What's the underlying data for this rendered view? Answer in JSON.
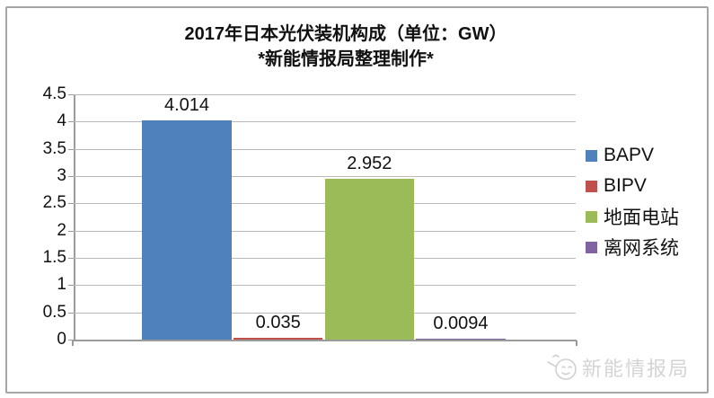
{
  "title": {
    "line1": "2017年日本光伏装机构成（单位：GW）",
    "line2": "*新能情报局整理制作*"
  },
  "chart_data": {
    "type": "bar",
    "title": "2017年日本光伏装机构成（单位：GW） *新能情报局整理制作*",
    "categories": [
      ""
    ],
    "series": [
      {
        "name": "BAPV",
        "value": 4.014,
        "label": "4.014",
        "color": "#4F81BD"
      },
      {
        "name": "BIPV",
        "value": 0.035,
        "label": "0.035",
        "color": "#C0504D"
      },
      {
        "name": "地面电站",
        "value": 2.952,
        "label": "2.952",
        "color": "#9BBB59"
      },
      {
        "name": "离网系统",
        "value": 0.0094,
        "label": "0.0094",
        "color": "#8064A2"
      }
    ],
    "xlabel": "",
    "ylabel": "",
    "ylim": [
      0,
      4.5
    ],
    "ytick_step": 0.5,
    "yticks": [
      "0",
      "0.5",
      "1",
      "1.5",
      "2",
      "2.5",
      "3",
      "3.5",
      "4",
      "4.5"
    ],
    "grid": true,
    "legend_position": "right"
  },
  "watermark": {
    "label": "新能情报局",
    "icon": "smiley-face-icon"
  }
}
